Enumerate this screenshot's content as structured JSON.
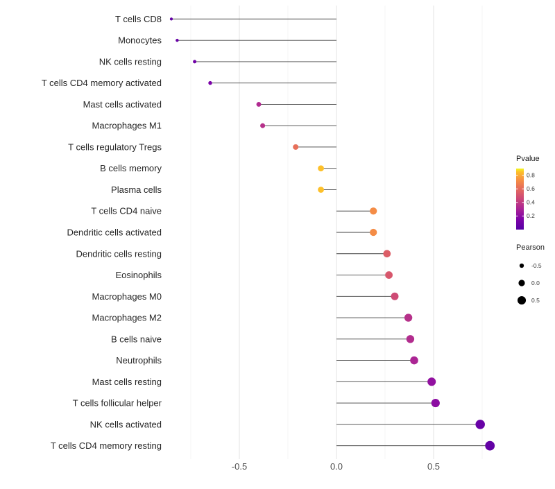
{
  "chart_data": {
    "type": "lollipop",
    "orientation": "horizontal",
    "title": "",
    "xlabel": "",
    "ylabel": "",
    "x_ticks": [
      -0.5,
      0.0,
      0.5
    ],
    "x_tick_labels": [
      "-0.5",
      "0.0",
      "0.5"
    ],
    "xlim": [
      -0.875,
      0.89
    ],
    "grid_major": [
      -0.5,
      0.0,
      0.5
    ],
    "grid_minor": [
      -0.75,
      -0.25,
      0.25,
      0.75
    ],
    "rows": [
      {
        "category": "T cells CD8",
        "pearson": -0.85,
        "pvalue": 0.05
      },
      {
        "category": "Monocytes",
        "pearson": -0.82,
        "pvalue": 0.07
      },
      {
        "category": "NK cells resting",
        "pearson": -0.73,
        "pvalue": 0.1
      },
      {
        "category": "T cells CD4 memory activated",
        "pearson": -0.65,
        "pvalue": 0.14
      },
      {
        "category": "Mast cells activated",
        "pearson": -0.4,
        "pvalue": 0.33
      },
      {
        "category": "Macrophages M1",
        "pearson": -0.38,
        "pvalue": 0.36
      },
      {
        "category": "T cells regulatory  Tregs",
        "pearson": -0.21,
        "pvalue": 0.62
      },
      {
        "category": "B cells memory",
        "pearson": -0.08,
        "pvalue": 0.85
      },
      {
        "category": "Plasma cells",
        "pearson": -0.08,
        "pvalue": 0.85
      },
      {
        "category": "T cells CD4 naive",
        "pearson": 0.19,
        "pvalue": 0.72
      },
      {
        "category": "Dendritic cells activated",
        "pearson": 0.19,
        "pvalue": 0.72
      },
      {
        "category": "Dendritic cells resting",
        "pearson": 0.26,
        "pvalue": 0.55
      },
      {
        "category": "Eosinophils",
        "pearson": 0.27,
        "pvalue": 0.52
      },
      {
        "category": "Macrophages M0",
        "pearson": 0.3,
        "pvalue": 0.47
      },
      {
        "category": "Macrophages M2",
        "pearson": 0.37,
        "pvalue": 0.36
      },
      {
        "category": "B cells naive",
        "pearson": 0.38,
        "pvalue": 0.34
      },
      {
        "category": "Neutrophils",
        "pearson": 0.4,
        "pvalue": 0.31
      },
      {
        "category": "Mast cells resting",
        "pearson": 0.49,
        "pvalue": 0.22
      },
      {
        "category": "T cells follicular helper",
        "pearson": 0.51,
        "pvalue": 0.2
      },
      {
        "category": "NK cells activated",
        "pearson": 0.74,
        "pvalue": 0.07
      },
      {
        "category": "T cells CD4 memory resting",
        "pearson": 0.79,
        "pvalue": 0.05
      }
    ],
    "legends": {
      "pvalue": {
        "title": "Pvalue",
        "ticks": [
          0.8,
          0.6,
          0.4,
          0.2
        ],
        "tick_labels": [
          "0.8",
          "0.6",
          "0.4",
          "0.2"
        ],
        "domain": [
          0,
          0.9
        ]
      },
      "pearson": {
        "title": "Pearson",
        "items": [
          -0.5,
          0.0,
          0.5
        ],
        "item_labels": [
          "-0.5",
          "0.0",
          "0.5"
        ]
      }
    },
    "color_scale": {
      "name": "plasma",
      "domain": [
        0,
        0.9
      ],
      "stops": [
        {
          "t": 0.0,
          "color": "#5601a4"
        },
        {
          "t": 0.17,
          "color": "#7e03a8"
        },
        {
          "t": 0.33,
          "color": "#a82296"
        },
        {
          "t": 0.5,
          "color": "#cb4679"
        },
        {
          "t": 0.67,
          "color": "#e56b5d"
        },
        {
          "t": 0.83,
          "color": "#f89441"
        },
        {
          "t": 0.95,
          "color": "#fdc229"
        },
        {
          "t": 1.0,
          "color": "#f0f921"
        }
      ]
    },
    "colors": {
      "stem": "#404040",
      "axis_text": "#4d4d4d",
      "label_text": "#262626",
      "legend_title_text": "#1a1a1a",
      "legend_text": "#333333",
      "grid_major": "#e3e3e3",
      "grid_minor": "#f2f2f2",
      "size_legend_dot": "#000000",
      "background": "#ffffff"
    }
  }
}
